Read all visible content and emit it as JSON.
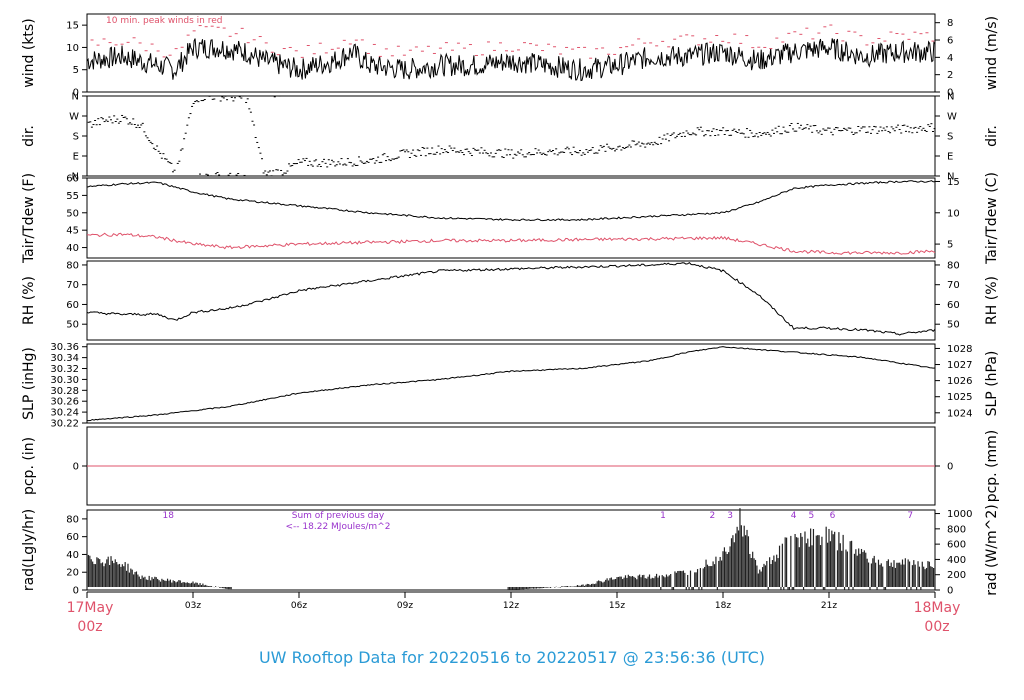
{
  "footer_title": "UW Rooftop Data for 20220516  to  20220517 @ 23:56:36  (UTC)",
  "colors": {
    "axis": "#000000",
    "red": "#df536b",
    "purple": "#9933cc",
    "footer": "#2b9bd6"
  },
  "chart_data": [
    {
      "type": "line",
      "panel": "wind",
      "ylabel": "wind (kts)",
      "ylabel_right": "wind (m/s)",
      "yticks": [
        0,
        5,
        10,
        15
      ],
      "yticks_right": [
        0,
        2,
        4,
        6,
        8
      ],
      "ylim": [
        0,
        17.5
      ],
      "annotation": "10 min. peak winds in red",
      "x": [
        0,
        1,
        2,
        2.5,
        3,
        3.8,
        4.5,
        5,
        6,
        6.5,
        7,
        7.5,
        8,
        9,
        10,
        11,
        12,
        13,
        14,
        15,
        16,
        17,
        18,
        19,
        20,
        21,
        22,
        23,
        24
      ],
      "series": [
        {
          "values": [
            7,
            8,
            6,
            5,
            10,
            10,
            9,
            7,
            5,
            6,
            7,
            9,
            6,
            5,
            6,
            6,
            7,
            6,
            5,
            6,
            8,
            8,
            9,
            7,
            9,
            10,
            8,
            9,
            9
          ]
        },
        {
          "values": [
            10,
            11,
            9,
            8,
            13,
            13,
            12,
            10,
            8,
            9,
            10,
            12,
            9,
            8,
            9,
            9,
            10,
            9,
            8,
            9,
            11,
            11,
            12,
            10,
            12,
            13,
            11,
            12,
            12
          ]
        }
      ]
    },
    {
      "type": "scatter",
      "panel": "dir",
      "ylabel": "dir.",
      "ylabel_right": "dir.",
      "yticks": [
        "N",
        "E",
        "S",
        "W",
        "N"
      ],
      "ylim": [
        0,
        360
      ],
      "x": [
        0,
        0.5,
        1,
        1.5,
        2,
        2.5,
        3,
        3.5,
        4,
        4.5,
        5,
        5.5,
        6,
        7,
        8,
        9,
        10,
        11,
        12,
        13,
        14,
        15,
        16,
        17,
        18,
        19,
        20,
        21,
        22,
        23,
        24
      ],
      "values": [
        230,
        250,
        260,
        230,
        110,
        10,
        350,
        360,
        355,
        350,
        10,
        20,
        60,
        60,
        70,
        100,
        120,
        110,
        100,
        110,
        110,
        130,
        150,
        200,
        200,
        190,
        220,
        200,
        210,
        210,
        220
      ]
    },
    {
      "type": "line",
      "panel": "temp",
      "ylabel": "Tair/Tdew (F)",
      "ylabel_right": "Tair/Tdew (C)",
      "yticks": [
        40,
        45,
        50,
        55,
        60
      ],
      "yticks_right": [
        5,
        10,
        15
      ],
      "ylim": [
        37,
        60
      ],
      "x": [
        0,
        1,
        2,
        3,
        4,
        6,
        8,
        10,
        12,
        14,
        16,
        18,
        19,
        20,
        21,
        22,
        23,
        24
      ],
      "series": [
        {
          "values": [
            57.5,
            58.3,
            58.7,
            56,
            54,
            52,
            50,
            48.5,
            48,
            48,
            49,
            50,
            53,
            57,
            58,
            58.5,
            59,
            59
          ]
        },
        {
          "values": [
            43.5,
            43.8,
            43,
            41,
            40,
            41,
            41.5,
            42,
            42,
            42.3,
            42.5,
            42.8,
            41,
            39,
            38.5,
            38.5,
            38.5,
            39
          ]
        }
      ]
    },
    {
      "type": "line",
      "panel": "rh",
      "ylabel": "RH (%)",
      "ylabel_right": "RH (%)",
      "yticks": [
        50,
        60,
        70,
        80
      ],
      "ylim": [
        42,
        82
      ],
      "x": [
        0,
        1,
        2,
        2.5,
        3,
        4,
        5,
        6,
        8,
        10,
        12,
        14,
        16,
        17,
        18,
        19,
        20,
        21,
        22,
        23,
        24
      ],
      "values": [
        56,
        55,
        55,
        52,
        56,
        58,
        62,
        67,
        72,
        77,
        78,
        79,
        80,
        81,
        77,
        65,
        48,
        48,
        47,
        45,
        47
      ]
    },
    {
      "type": "line",
      "panel": "slp",
      "ylabel": "SLP (inHg)",
      "ylabel_right": "SLP (hPa)",
      "yticks": [
        30.22,
        30.24,
        30.26,
        30.28,
        30.3,
        30.32,
        30.34,
        30.36
      ],
      "yticks_right": [
        1024,
        1025,
        1026,
        1027,
        1028
      ],
      "ylim": [
        30.22,
        30.365
      ],
      "x": [
        0,
        2,
        4,
        6,
        8,
        10,
        12,
        14,
        16,
        17,
        18,
        19,
        20,
        21,
        22,
        23,
        24
      ],
      "values": [
        30.225,
        30.235,
        30.25,
        30.275,
        30.29,
        30.3,
        30.315,
        30.32,
        30.335,
        30.35,
        30.36,
        30.355,
        30.35,
        30.345,
        30.34,
        30.33,
        30.32
      ]
    },
    {
      "type": "line",
      "panel": "pcp",
      "ylabel": "pcp. (in)",
      "ylabel_right": "pcp. (mm)",
      "yticks": [
        0
      ],
      "yticks_right": [
        0
      ],
      "x": [
        0,
        24
      ],
      "values": [
        0,
        0
      ]
    },
    {
      "type": "area",
      "panel": "rad",
      "ylabel": "rad(Lgly/hr)",
      "ylabel_right": "rad (W/m^2)",
      "yticks": [
        0,
        20,
        40,
        60,
        80
      ],
      "yticks_right": [
        0,
        200,
        400,
        600,
        800,
        1000
      ],
      "ylim": [
        0,
        90
      ],
      "x": [
        0,
        0.2,
        1,
        1.5,
        2,
        3,
        4,
        12,
        14,
        15,
        16,
        17,
        18,
        18.5,
        19,
        20,
        21,
        21.5,
        22.5,
        23.5,
        24
      ],
      "values": [
        45,
        35,
        30,
        15,
        12,
        8,
        1,
        0,
        5,
        14,
        15,
        20,
        40,
        80,
        20,
        60,
        60,
        50,
        30,
        30,
        28
      ],
      "labels": [
        "18",
        "1",
        "2",
        "3",
        "4",
        "5",
        "6",
        "7"
      ],
      "note_title": "Sum of previous day",
      "note_value": "<-- 18.22 MJoules/m^2"
    }
  ],
  "x_axis": {
    "ticks": [
      "03z",
      "06z",
      "09z",
      "12z",
      "15z",
      "18z",
      "21z"
    ],
    "start_label": "17May",
    "start_sub": "00z",
    "end_label": "18May",
    "end_sub": "00z"
  }
}
